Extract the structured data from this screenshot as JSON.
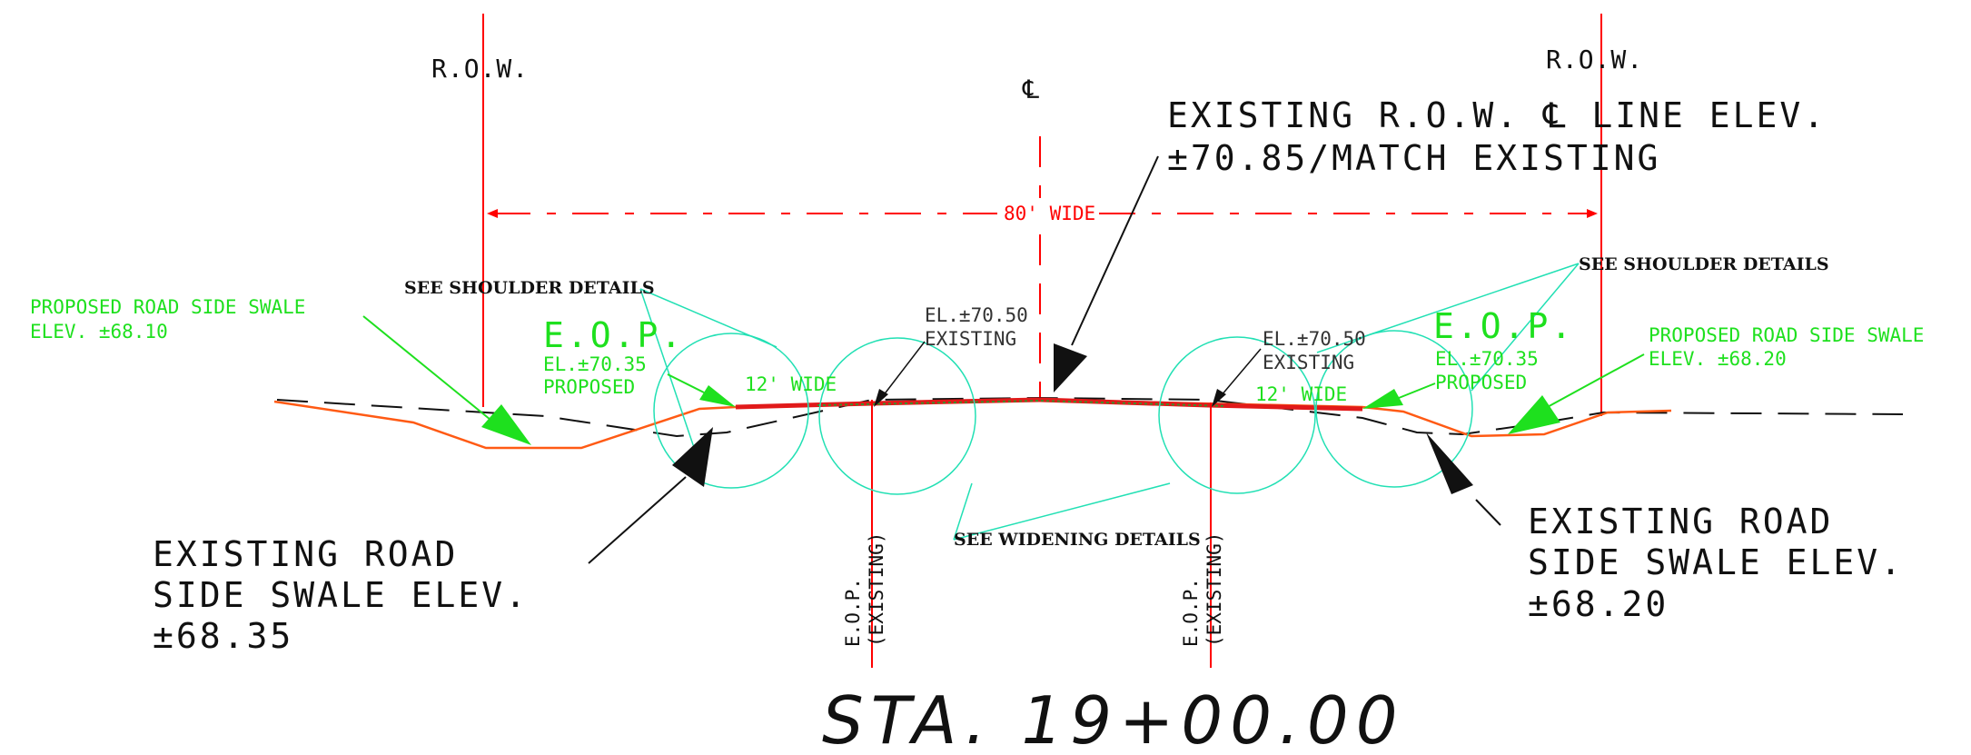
{
  "colors": {
    "row_line": "#ff0000",
    "proposed_profile": "#ff5a14",
    "pavement": "#e11a1a",
    "annotation_green": "#1ee01e",
    "leader_cyan": "#22e0b4",
    "existing_ground": "#111111",
    "text": "#111111"
  },
  "labels": {
    "row_left": "R.O.W.",
    "row_right": "R.O.W.",
    "centerline_symbol": "℄",
    "existing_row_line_1": "EXISTING R.O.W. ℄ LINE ELEV.",
    "existing_row_line_2": "±70.85/MATCH EXISTING",
    "row_width": "80' WIDE",
    "see_shoulder_left": "SEE SHOULDER DETAILS",
    "see_shoulder_right": "SEE SHOULDER DETAILS",
    "see_widening": "SEE WIDENING DETAILS",
    "prop_swale_left_1": "PROPOSED ROAD SIDE SWALE",
    "prop_swale_left_2": "ELEV. ±68.10",
    "prop_swale_right_1": "PROPOSED ROAD SIDE SWALE",
    "prop_swale_right_2": "ELEV. ±68.20",
    "eop_left": "E.O.P.",
    "eop_left_el": "EL.±70.35",
    "eop_left_prop": "PROPOSED",
    "eop_right": "E.O.P.",
    "eop_right_el": "EL.±70.35",
    "eop_right_prop": "PROPOSED",
    "lane_left": "12' WIDE",
    "lane_right": "12' WIDE",
    "el_exist_left_1": "EL.±70.50",
    "el_exist_left_2": "EXISTING",
    "el_exist_right_1": "EL.±70.50",
    "el_exist_right_2": "EXISTING",
    "exist_swale_left_1": "EXISTING ROAD",
    "exist_swale_left_2": "SIDE SWALE ELEV.",
    "exist_swale_left_3": "±68.35",
    "exist_swale_right_1": "EXISTING ROAD",
    "exist_swale_right_2": "SIDE SWALE ELEV.",
    "exist_swale_right_3": "±68.20",
    "eop_exist_left_1": "E.O.P.",
    "eop_exist_left_2": "(EXISTING)",
    "eop_exist_right_1": "E.O.P.",
    "eop_exist_right_2": "(EXISTING)",
    "station": "STA. 19+00.00"
  }
}
